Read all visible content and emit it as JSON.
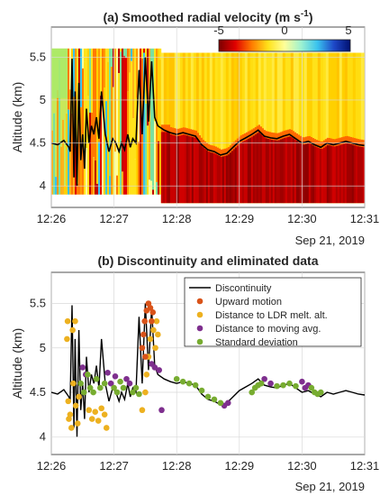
{
  "chart_data": [
    {
      "type": "heatmap",
      "title": "(a) Smoothed radial velocity (m s",
      "title_sup": "-1",
      "title_close": ")",
      "ylabel": "Altitude (km)",
      "xlabel": "",
      "date_label": "Sep 21, 2019",
      "xticks": [
        "12:26",
        "12:27",
        "12:28",
        "12:29",
        "12:30",
        "12:31"
      ],
      "xlim_minutes": [
        0,
        5
      ],
      "yticks": [
        "4",
        "4.5",
        "5",
        "5.5"
      ],
      "ylim": [
        3.75,
        5.85
      ],
      "colorbar": {
        "ticks": [
          "-5",
          "0",
          "5"
        ],
        "range": [
          -5,
          5
        ],
        "colors": [
          "#7a0000",
          "#e00000",
          "#ff7a00",
          "#ffe21a",
          "#ffff9a",
          "#9ff2d0",
          "#39c3ee",
          "#1e48c8",
          "#001070"
        ]
      },
      "discontinuity_line_color": "#000000",
      "grid": true
    },
    {
      "type": "scatter",
      "title": "(b) Discontinuity and eliminated data",
      "ylabel": "Altitude (km)",
      "xlabel": "",
      "date_label": "Sep 21, 2019",
      "xticks": [
        "12:26",
        "12:27",
        "12:28",
        "12:29",
        "12:30",
        "12:31"
      ],
      "xlim_minutes": [
        0,
        5
      ],
      "yticks": [
        "4",
        "4.5",
        "5",
        "5.5"
      ],
      "ylim": [
        3.8,
        5.85
      ],
      "legend_position": "top-right",
      "grid": true,
      "series": [
        {
          "name": "Discontinuity",
          "color": "#000000",
          "kind": "line"
        },
        {
          "name": "Upward motion",
          "color": "#d95319",
          "kind": "marker"
        },
        {
          "name": "Distance to LDR melt. alt.",
          "color": "#edb120",
          "kind": "marker"
        },
        {
          "name": "Distance to moving avg.",
          "color": "#7e2f8e",
          "kind": "marker"
        },
        {
          "name": "Standard deviation",
          "color": "#77ac30",
          "kind": "marker"
        }
      ],
      "discontinuity": {
        "t": [
          0,
          0.1,
          0.2,
          0.28,
          0.3,
          0.33,
          0.36,
          0.38,
          0.41,
          0.44,
          0.47,
          0.5,
          0.53,
          0.56,
          0.6,
          0.64,
          0.68,
          0.72,
          0.76,
          0.8,
          0.86,
          0.92,
          0.98,
          1.03,
          1.08,
          1.12,
          1.17,
          1.22,
          1.26,
          1.3,
          1.35,
          1.4,
          1.45,
          1.5,
          1.55,
          1.6,
          1.65,
          1.7,
          1.8,
          1.9,
          2.0,
          2.1,
          2.2,
          2.3,
          2.4,
          2.5,
          2.6,
          2.7,
          2.8,
          2.9,
          3.0,
          3.1,
          3.2,
          3.3,
          3.4,
          3.5,
          3.6,
          3.7,
          3.8,
          3.9,
          4.0,
          4.1,
          4.2,
          4.3,
          4.4,
          4.5,
          4.6,
          4.7,
          4.8,
          4.9,
          5.0
        ],
        "alt": [
          4.5,
          4.48,
          4.53,
          4.45,
          4.4,
          5.48,
          4.1,
          5.1,
          4.0,
          5.2,
          4.3,
          4.6,
          4.2,
          4.9,
          4.5,
          4.7,
          4.6,
          4.8,
          4.55,
          5.1,
          4.6,
          4.4,
          4.55,
          4.5,
          4.4,
          4.5,
          4.42,
          4.6,
          4.45,
          4.55,
          4.5,
          5.35,
          4.6,
          5.5,
          4.75,
          5.45,
          4.8,
          4.7,
          4.65,
          4.62,
          4.6,
          4.62,
          4.6,
          4.58,
          4.48,
          4.42,
          4.4,
          4.36,
          4.38,
          4.45,
          4.52,
          4.56,
          4.6,
          4.65,
          4.58,
          4.56,
          4.55,
          4.58,
          4.6,
          4.55,
          4.5,
          4.52,
          4.48,
          4.45,
          4.5,
          4.48,
          4.5,
          4.52,
          4.5,
          4.48,
          4.47
        ]
      },
      "upward_motion": [
        [
          1.45,
          5.0
        ],
        [
          1.47,
          5.15
        ],
        [
          1.49,
          5.3
        ],
        [
          1.52,
          5.42
        ],
        [
          1.55,
          5.5
        ],
        [
          1.58,
          5.45
        ],
        [
          1.6,
          5.3
        ],
        [
          1.5,
          4.9
        ],
        [
          1.62,
          5.4
        ]
      ],
      "ldr_distance": [
        [
          0.25,
          5.1
        ],
        [
          0.26,
          5.3
        ],
        [
          0.27,
          4.4
        ],
        [
          0.28,
          4.2
        ],
        [
          0.3,
          4.25
        ],
        [
          0.32,
          4.1
        ],
        [
          0.34,
          5.2
        ],
        [
          0.35,
          4.6
        ],
        [
          0.38,
          5.3
        ],
        [
          0.39,
          4.35
        ],
        [
          0.42,
          4.15
        ],
        [
          0.44,
          4.45
        ],
        [
          0.6,
          4.3
        ],
        [
          0.65,
          4.2
        ],
        [
          0.7,
          4.28
        ],
        [
          0.75,
          4.18
        ],
        [
          0.8,
          4.32
        ],
        [
          0.85,
          4.25
        ],
        [
          0.88,
          4.1
        ],
        [
          1.45,
          4.3
        ],
        [
          1.5,
          4.5
        ],
        [
          1.52,
          4.7
        ],
        [
          1.55,
          4.9
        ],
        [
          1.58,
          5.1
        ],
        [
          1.6,
          5.3
        ],
        [
          1.63,
          5.2
        ],
        [
          1.66,
          5.0
        ],
        [
          1.68,
          5.3
        ],
        [
          1.7,
          5.15
        ]
      ],
      "moving_avg_distance": [
        [
          0.5,
          4.78
        ],
        [
          0.55,
          4.7
        ],
        [
          0.9,
          4.72
        ],
        [
          0.95,
          4.6
        ],
        [
          1.02,
          4.68
        ],
        [
          1.2,
          4.65
        ],
        [
          1.25,
          4.6
        ],
        [
          1.6,
          4.82
        ],
        [
          1.65,
          4.78
        ],
        [
          1.72,
          4.75
        ],
        [
          1.76,
          4.3
        ],
        [
          2.76,
          4.35
        ],
        [
          2.82,
          4.38
        ],
        [
          3.4,
          4.65
        ],
        [
          3.5,
          4.6
        ],
        [
          4.0,
          4.62
        ],
        [
          4.05,
          4.55
        ],
        [
          4.1,
          4.58
        ]
      ],
      "std_dev": [
        [
          0.47,
          4.6
        ],
        [
          0.52,
          4.5
        ],
        [
          0.58,
          4.7
        ],
        [
          0.62,
          4.55
        ],
        [
          0.67,
          4.5
        ],
        [
          0.72,
          4.65
        ],
        [
          0.78,
          4.55
        ],
        [
          0.85,
          4.6
        ],
        [
          1.0,
          4.55
        ],
        [
          1.05,
          4.5
        ],
        [
          1.1,
          4.62
        ],
        [
          1.15,
          4.55
        ],
        [
          1.3,
          4.5
        ],
        [
          1.35,
          4.55
        ],
        [
          1.4,
          4.48
        ],
        [
          2.0,
          4.65
        ],
        [
          2.1,
          4.62
        ],
        [
          2.2,
          4.6
        ],
        [
          2.3,
          4.58
        ],
        [
          2.4,
          4.52
        ],
        [
          2.5,
          4.45
        ],
        [
          2.6,
          4.42
        ],
        [
          2.7,
          4.38
        ],
        [
          3.2,
          4.5
        ],
        [
          3.25,
          4.55
        ],
        [
          3.3,
          4.58
        ],
        [
          3.35,
          4.6
        ],
        [
          3.6,
          4.57
        ],
        [
          3.7,
          4.58
        ],
        [
          3.8,
          4.6
        ],
        [
          3.9,
          4.57
        ],
        [
          4.15,
          4.55
        ],
        [
          4.2,
          4.5
        ],
        [
          4.25,
          4.48
        ],
        [
          4.3,
          4.5
        ]
      ]
    }
  ]
}
